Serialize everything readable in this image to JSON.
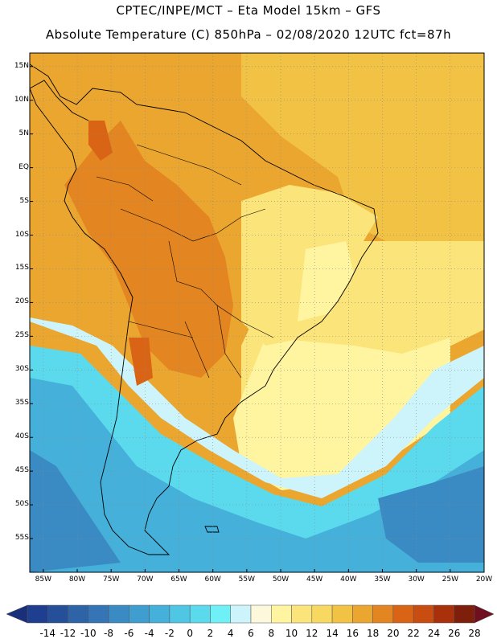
{
  "header": {
    "line1": "CPTEC/INPE/MCT –  Eta Model 15km – GFS",
    "line2": "Absolute Temperature (C) 850hPa – 02/08/2020 12UTC fct=87h"
  },
  "map": {
    "lat_labels": [
      "15N",
      "10N",
      "5N",
      "EQ",
      "5S",
      "10S",
      "15S",
      "20S",
      "25S",
      "30S",
      "35S",
      "40S",
      "45S",
      "50S",
      "55S"
    ],
    "lon_labels": [
      "85W",
      "80W",
      "75W",
      "70W",
      "65W",
      "60W",
      "55W",
      "50W",
      "45W",
      "40W",
      "35W",
      "30W",
      "25W",
      "20W"
    ],
    "lat_values": [
      15,
      10,
      5,
      0,
      -5,
      -10,
      -15,
      -20,
      -25,
      -30,
      -35,
      -40,
      -45,
      -50,
      -55
    ],
    "lon_values": [
      -85,
      -80,
      -75,
      -70,
      -65,
      -60,
      -55,
      -50,
      -45,
      -40,
      -35,
      -30,
      -25,
      -20
    ]
  },
  "colorbar": {
    "labels": [
      "-14",
      "-12",
      "-10",
      "-8",
      "-6",
      "-4",
      "-2",
      "0",
      "2",
      "4",
      "6",
      "8",
      "10",
      "12",
      "14",
      "16",
      "18",
      "20",
      "22",
      "24",
      "26",
      "28"
    ],
    "colors": [
      "#1e3f8f",
      "#264f9a",
      "#2f63a8",
      "#3575b6",
      "#3a8ac4",
      "#3f9dcf",
      "#45b1da",
      "#4fc6e4",
      "#5bdaee",
      "#6ef0f6",
      "#cdf4fb",
      "#fdf7dc",
      "#fff4a0",
      "#fbe57a",
      "#f7d860",
      "#f2c245",
      "#eba630",
      "#e38520",
      "#d96416",
      "#c94c10",
      "#a8310c",
      "#7e1f0b"
    ]
  },
  "regions": [
    {
      "name": "tropical-ocean-north",
      "color": "#eba630"
    },
    {
      "name": "continent-interior",
      "color": "#e38520"
    },
    {
      "name": "andes-hotspot",
      "color": "#d96416"
    },
    {
      "name": "southeast-brazil",
      "color": "#fbe57a"
    },
    {
      "name": "subtropical-atlantic",
      "color": "#fff4a0"
    },
    {
      "name": "cold-front-band",
      "color": "#cdf4fb"
    },
    {
      "name": "south-atlantic-cold",
      "color": "#45b1da"
    },
    {
      "name": "southern-ocean-cold",
      "color": "#3a8ac4"
    }
  ]
}
